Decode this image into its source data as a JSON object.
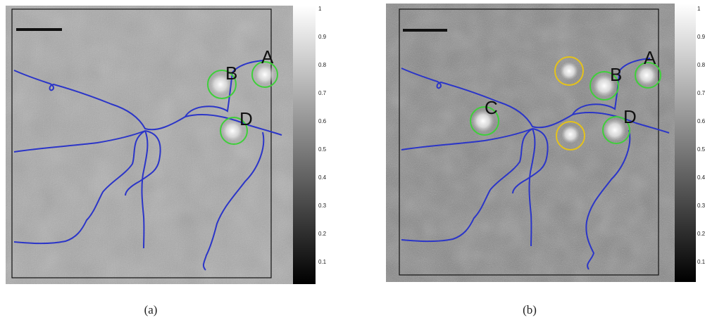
{
  "panels": [
    {
      "caption": "(a)",
      "labels": [
        "A",
        "B",
        "D"
      ],
      "colorbar_ticks": [
        "1",
        "0.9",
        "0.8",
        "0.7",
        "0.6",
        "0.5",
        "0.4",
        "0.3",
        "0.2",
        "0.1"
      ]
    },
    {
      "caption": "(b)",
      "labels": [
        "A",
        "B",
        "C",
        "D"
      ],
      "colorbar_ticks": [
        "1",
        "0.9",
        "0.8",
        "0.7",
        "0.6",
        "0.5",
        "0.4",
        "0.3",
        "0.2",
        "0.1"
      ]
    }
  ],
  "colors": {
    "river": "#2b35c8",
    "green_circle": "#3fcf3a",
    "yellow_circle": "#e4c21a",
    "frame": "#111111",
    "scale_bar": "#111111"
  }
}
